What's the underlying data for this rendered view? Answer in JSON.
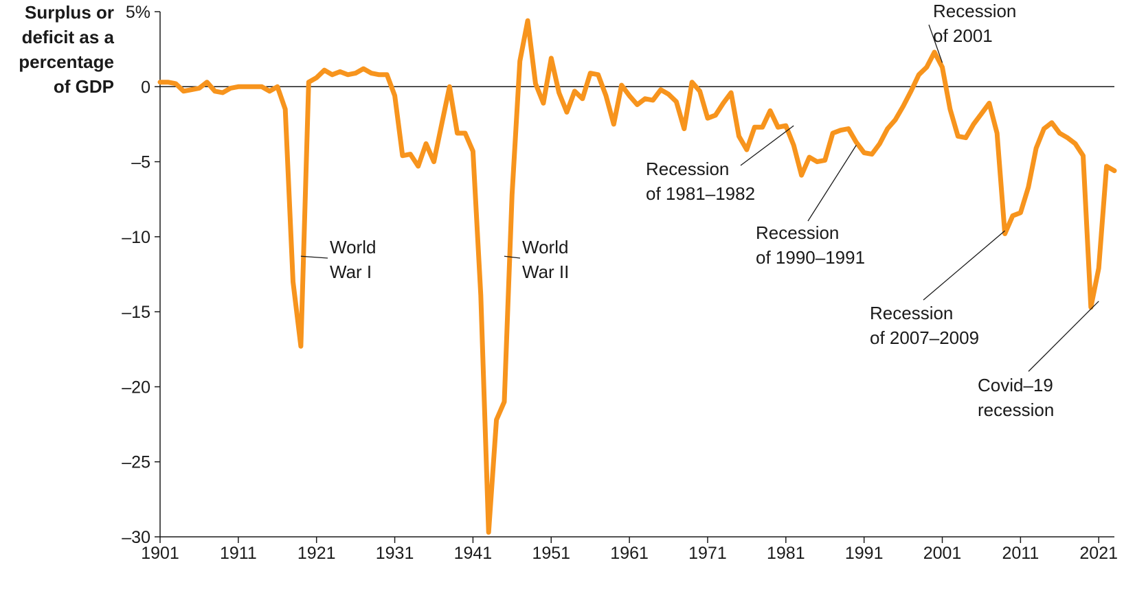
{
  "chart_data": {
    "type": "line",
    "ylabel_lines": [
      "Surplus or",
      "deficit as a",
      "percentage",
      "of GDP"
    ],
    "xlabel": "",
    "ylim": [
      -30,
      5
    ],
    "xlim": [
      1901,
      2023
    ],
    "grid": false,
    "zero_line": true,
    "colors": {
      "series": "#f7941d",
      "axis": "#1a1a1a"
    },
    "y_ticks": [
      {
        "value": 5,
        "label": "5%"
      },
      {
        "value": 0,
        "label": "0"
      },
      {
        "value": -5,
        "label": "–5"
      },
      {
        "value": -10,
        "label": "–10"
      },
      {
        "value": -15,
        "label": "–15"
      },
      {
        "value": -20,
        "label": "–20"
      },
      {
        "value": -25,
        "label": "–25"
      },
      {
        "value": -30,
        "label": "–30"
      }
    ],
    "x_ticks": [
      {
        "value": 1901,
        "label": "1901"
      },
      {
        "value": 1911,
        "label": "1911"
      },
      {
        "value": 1921,
        "label": "1921"
      },
      {
        "value": 1931,
        "label": "1931"
      },
      {
        "value": 1941,
        "label": "1941"
      },
      {
        "value": 1951,
        "label": "1951"
      },
      {
        "value": 1961,
        "label": "1961"
      },
      {
        "value": 1971,
        "label": "1971"
      },
      {
        "value": 1981,
        "label": "1981"
      },
      {
        "value": 1991,
        "label": "1991"
      },
      {
        "value": 2001,
        "label": "2001"
      },
      {
        "value": 2011,
        "label": "2011"
      },
      {
        "value": 2021,
        "label": "2021"
      }
    ],
    "series": [
      {
        "x": [
          1901,
          1902,
          1903,
          1904,
          1905,
          1906,
          1907,
          1908,
          1909,
          1910,
          1911,
          1912,
          1913,
          1914,
          1915,
          1916,
          1917,
          1918,
          1919,
          1920,
          1921,
          1922,
          1923,
          1924,
          1925,
          1926,
          1927,
          1928,
          1929,
          1930,
          1931,
          1932,
          1933,
          1934,
          1935,
          1936,
          1937,
          1938,
          1939,
          1940,
          1941,
          1942,
          1943,
          1944,
          1945,
          1946,
          1947,
          1948,
          1949,
          1950,
          1951,
          1952,
          1953,
          1954,
          1955,
          1956,
          1957,
          1958,
          1959,
          1960,
          1961,
          1962,
          1963,
          1964,
          1965,
          1966,
          1967,
          1968,
          1969,
          1970,
          1971,
          1972,
          1973,
          1974,
          1975,
          1976,
          1977,
          1978,
          1979,
          1980,
          1981,
          1982,
          1983,
          1984,
          1985,
          1986,
          1987,
          1988,
          1989,
          1990,
          1991,
          1992,
          1993,
          1994,
          1995,
          1996,
          1997,
          1998,
          1999,
          2000,
          2001,
          2002,
          2003,
          2004,
          2005,
          2006,
          2007,
          2008,
          2009,
          2010,
          2011,
          2012,
          2013,
          2014,
          2015,
          2016,
          2017,
          2018,
          2019,
          2020,
          2021,
          2022,
          2023
        ],
        "values": [
          0.3,
          0.3,
          0.2,
          -0.3,
          -0.2,
          -0.1,
          0.3,
          -0.3,
          -0.4,
          -0.1,
          0.0,
          0.0,
          0.0,
          0.0,
          -0.3,
          0.0,
          -1.5,
          -13.0,
          -17.3,
          0.3,
          0.6,
          1.1,
          0.8,
          1.0,
          0.8,
          0.9,
          1.2,
          0.9,
          0.8,
          0.8,
          -0.6,
          -4.6,
          -4.5,
          -5.3,
          -3.8,
          -5.0,
          -2.5,
          0.0,
          -3.1,
          -3.1,
          -4.3,
          -13.9,
          -29.7,
          -22.2,
          -21.0,
          -7.2,
          1.7,
          4.4,
          0.2,
          -1.1,
          1.9,
          -0.4,
          -1.7,
          -0.3,
          -0.8,
          0.9,
          0.8,
          -0.6,
          -2.5,
          0.1,
          -0.6,
          -1.2,
          -0.8,
          -0.9,
          -0.2,
          -0.5,
          -1.0,
          -2.8,
          0.3,
          -0.3,
          -2.1,
          -1.9,
          -1.1,
          -0.4,
          -3.3,
          -4.2,
          -2.7,
          -2.7,
          -1.6,
          -2.7,
          -2.6,
          -3.9,
          -5.9,
          -4.7,
          -5.0,
          -4.9,
          -3.1,
          -2.9,
          -2.8,
          -3.7,
          -4.4,
          -4.5,
          -3.8,
          -2.8,
          -2.2,
          -1.3,
          -0.3,
          0.8,
          1.3,
          2.3,
          1.3,
          -1.5,
          -3.3,
          -3.4,
          -2.5,
          -1.8,
          -1.1,
          -3.1,
          -9.8,
          -8.6,
          -8.4,
          -6.7,
          -4.1,
          -2.8,
          -2.4,
          -3.1,
          -3.4,
          -3.8,
          -4.6,
          -14.7,
          -12.1,
          -5.3,
          -5.6
        ]
      }
    ],
    "annotations": [
      {
        "id": "ww1",
        "lines": [
          "World",
          "War I"
        ],
        "target_year": 1919,
        "target_value": -11.3
      },
      {
        "id": "ww2",
        "lines": [
          "World",
          "War II"
        ],
        "target_year": 1945,
        "target_value": -11.3
      },
      {
        "id": "rec1981",
        "lines": [
          "Recession",
          "of 1981–1982"
        ],
        "target_year": 1982,
        "target_value": -2.6
      },
      {
        "id": "rec1990",
        "lines": [
          "Recession",
          "of 1990–1991"
        ],
        "target_year": 1990,
        "target_value": -3.9
      },
      {
        "id": "rec2001",
        "lines": [
          "Recession",
          "of 2001"
        ],
        "target_year": 2001,
        "target_value": 1.6
      },
      {
        "id": "rec2007",
        "lines": [
          "Recession",
          "of 2007–2009"
        ],
        "target_year": 2009,
        "target_value": -9.6
      },
      {
        "id": "covid",
        "lines": [
          "Covid–19",
          "recession"
        ],
        "target_year": 2021,
        "target_value": -14.3
      }
    ]
  }
}
